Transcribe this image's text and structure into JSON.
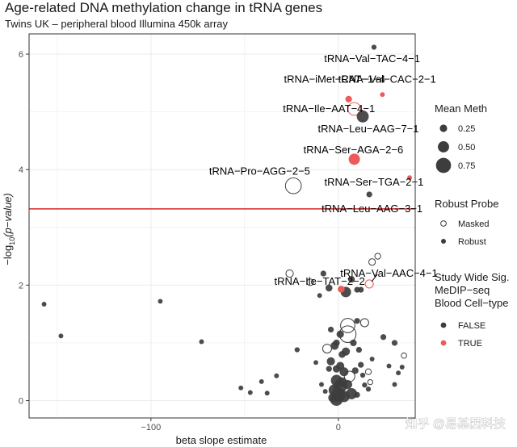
{
  "chart_data": {
    "type": "scatter",
    "title": "Age-related DNA methylation change in tRNA genes",
    "subtitle": "Twins UK – peripheral blood Illumina 450k array",
    "xlabel": "beta slope estimate",
    "ylabel_prefix": "−log",
    "ylabel_sub": "10",
    "ylabel_suffix": "(p−value)",
    "xlim": [
      -165,
      41
    ],
    "ylim": [
      -0.3,
      6.35
    ],
    "xticks": [
      {
        "value": -100,
        "label": "−100"
      },
      {
        "value": 0,
        "label": "0"
      }
    ],
    "yticks": [
      {
        "value": 0,
        "label": "0"
      },
      {
        "value": 2,
        "label": "2"
      },
      {
        "value": 4,
        "label": "4"
      },
      {
        "value": 6,
        "label": "6"
      }
    ],
    "threshold_line": {
      "y": 3.32,
      "color": "#d62728"
    },
    "colors": {
      "false": "#3d3d3d",
      "true": "#ee5a5a",
      "panel_bg": "#ffffff",
      "grid": "#ebebeb",
      "frame": "#333333"
    },
    "legend_mean_meth": {
      "title": "Mean Meth",
      "entries": [
        {
          "label": "0.25",
          "meth": 0.25
        },
        {
          "label": "0.50",
          "meth": 0.5
        },
        {
          "label": "0.75",
          "meth": 0.75
        }
      ]
    },
    "legend_robust": {
      "title": "Robust Probe",
      "entries": [
        {
          "label": "Masked",
          "kind": "masked"
        },
        {
          "label": "Robust",
          "kind": "robust"
        }
      ]
    },
    "legend_sig": {
      "title_lines": [
        "Study Wide Sig.",
        "MeDIP−seq",
        "Blood Cell−type"
      ],
      "entries": [
        {
          "label": "FALSE",
          "sig": false
        },
        {
          "label": "TRUE",
          "sig": true
        }
      ]
    },
    "labeled_points": [
      {
        "label": "tRNA−Val−TAC−4−1",
        "x": 19,
        "y": 6.12,
        "meth": 0.1,
        "robust": true,
        "sig": false,
        "lx": 18,
        "ly": 5.92
      },
      {
        "label": "tRNA−iMet−CAT−1−4",
        "x": 5.5,
        "y": 5.22,
        "meth": 0.2,
        "robust": true,
        "sig": true,
        "lx": -2,
        "ly": 5.56
      },
      {
        "label": "tRNA−Val−CAC−2−1",
        "x": 23.5,
        "y": 5.3,
        "meth": 0.08,
        "robust": true,
        "sig": true,
        "lx": 26,
        "ly": 5.56
      },
      {
        "label": "tRNA−Ile−AAT−4−1",
        "x": 8.5,
        "y": 5.05,
        "meth": 0.6,
        "robust": false,
        "sig": true,
        "lx": -5,
        "ly": 5.05
      },
      {
        "label": "tRNA−Leu−AAG−7−1",
        "x": 13,
        "y": 4.92,
        "meth": 0.55,
        "robust": true,
        "sig": false,
        "lx": 16,
        "ly": 4.7
      },
      {
        "label": "tRNA−Ser−AGA−2−6",
        "x": 8.5,
        "y": 4.18,
        "meth": 0.5,
        "robust": true,
        "sig": true,
        "lx": 8,
        "ly": 4.34
      },
      {
        "label": "tRNA−Pro−AGG−2−5",
        "x": -24,
        "y": 3.72,
        "meth": 0.8,
        "robust": false,
        "sig": false,
        "lx": -42,
        "ly": 3.97
      },
      {
        "label": "tRNA−Ser−TGA−2−1",
        "x": 38,
        "y": 3.86,
        "meth": 0.08,
        "robust": true,
        "sig": true,
        "lx": 19,
        "ly": 3.78
      },
      {
        "label": "tRNA−Leu−AAG−3−1",
        "x": 16.5,
        "y": 3.57,
        "meth": 0.15,
        "robust": true,
        "sig": false,
        "lx": 18,
        "ly": 3.32
      },
      {
        "label": "tRNA−Val−AAC−4−1",
        "x": 16.5,
        "y": 2.02,
        "meth": 0.3,
        "robust": false,
        "sig": true,
        "lx": 27,
        "ly": 2.2
      },
      {
        "label": "tRNA−Ile−TAT−2−2",
        "x": 1.5,
        "y": 1.93,
        "meth": 0.22,
        "robust": true,
        "sig": true,
        "lx": -10,
        "ly": 2.06
      }
    ],
    "points": [
      {
        "x": -157,
        "y": 1.67,
        "meth": 0.08,
        "robust": true
      },
      {
        "x": -148,
        "y": 1.12,
        "meth": 0.08,
        "robust": true
      },
      {
        "x": -95,
        "y": 1.72,
        "meth": 0.08,
        "robust": true
      },
      {
        "x": -73,
        "y": 1.02,
        "meth": 0.08,
        "robust": true
      },
      {
        "x": -52,
        "y": 0.22,
        "meth": 0.08,
        "robust": true
      },
      {
        "x": -47,
        "y": 0.14,
        "meth": 0.08,
        "robust": true
      },
      {
        "x": -41,
        "y": 0.33,
        "meth": 0.08,
        "robust": true
      },
      {
        "x": -38,
        "y": 0.13,
        "meth": 0.08,
        "robust": true
      },
      {
        "x": -33,
        "y": 0.43,
        "meth": 0.08,
        "robust": true
      },
      {
        "x": -22,
        "y": 0.88,
        "meth": 0.1,
        "robust": true
      },
      {
        "x": -12,
        "y": 0.66,
        "meth": 0.08,
        "robust": true
      },
      {
        "x": -9,
        "y": 0.28,
        "meth": 0.08,
        "robust": true
      },
      {
        "x": -7,
        "y": 0.16,
        "meth": 0.08,
        "robust": true
      },
      {
        "x": -26,
        "y": 2.2,
        "meth": 0.25,
        "robust": false
      },
      {
        "x": -15,
        "y": 2.05,
        "meth": 0.2,
        "robust": false
      },
      {
        "x": -10,
        "y": 1.82,
        "meth": 0.08,
        "robust": true
      },
      {
        "x": -8,
        "y": 2.2,
        "meth": 0.15,
        "robust": true
      },
      {
        "x": -5,
        "y": 1.95,
        "meth": 0.22,
        "robust": true
      },
      {
        "x": 4,
        "y": 1.88,
        "meth": 0.45,
        "robust": true
      },
      {
        "x": 10,
        "y": 1.92,
        "meth": 0.15,
        "robust": true
      },
      {
        "x": 12,
        "y": 1.92,
        "meth": 0.15,
        "robust": true
      },
      {
        "x": 7,
        "y": 2.1,
        "meth": 0.2,
        "robust": true
      },
      {
        "x": 18,
        "y": 2.4,
        "meth": 0.2,
        "robust": false
      },
      {
        "x": 21,
        "y": 2.5,
        "meth": 0.15,
        "robust": false
      },
      {
        "x": 14,
        "y": 1.35,
        "meth": 0.3,
        "robust": false
      },
      {
        "x": 10,
        "y": 1.38,
        "meth": 0.15,
        "robust": true
      },
      {
        "x": 5,
        "y": 1.3,
        "meth": 0.7,
        "robust": false
      },
      {
        "x": 5,
        "y": 1.15,
        "meth": 0.85,
        "robust": false
      },
      {
        "x": 1,
        "y": 1.15,
        "meth": 0.25,
        "robust": true
      },
      {
        "x": -4,
        "y": 1.23,
        "meth": 0.15,
        "robust": true
      },
      {
        "x": -1,
        "y": 1.0,
        "meth": 0.2,
        "robust": true
      },
      {
        "x": -6,
        "y": 0.9,
        "meth": 0.35,
        "robust": false
      },
      {
        "x": -2,
        "y": 0.95,
        "meth": 0.3,
        "robust": true
      },
      {
        "x": -4,
        "y": 0.68,
        "meth": 0.3,
        "robust": true
      },
      {
        "x": 4,
        "y": 0.85,
        "meth": 0.3,
        "robust": true
      },
      {
        "x": 8,
        "y": 1.0,
        "meth": 0.2,
        "robust": true
      },
      {
        "x": 11,
        "y": 0.88,
        "meth": 0.15,
        "robust": true
      },
      {
        "x": 12,
        "y": 0.62,
        "meth": 0.15,
        "robust": true
      },
      {
        "x": 3,
        "y": 0.5,
        "meth": 0.35,
        "robust": true
      },
      {
        "x": 6,
        "y": 0.42,
        "meth": 0.45,
        "robust": false
      },
      {
        "x": -1,
        "y": 0.35,
        "meth": 0.5,
        "robust": true
      },
      {
        "x": 1,
        "y": 0.25,
        "meth": 0.65,
        "robust": true
      },
      {
        "x": -2,
        "y": 0.18,
        "meth": 0.55,
        "robust": true
      },
      {
        "x": 0,
        "y": 0.1,
        "meth": 0.7,
        "robust": true
      },
      {
        "x": 3,
        "y": 0.07,
        "meth": 0.5,
        "robust": true
      },
      {
        "x": -3,
        "y": 0.05,
        "meth": 0.35,
        "robust": true
      },
      {
        "x": 5,
        "y": 0.28,
        "meth": 0.35,
        "robust": true
      },
      {
        "x": 7,
        "y": 0.12,
        "meth": 0.5,
        "robust": true
      },
      {
        "x": 2,
        "y": 0.32,
        "meth": 0.4,
        "robust": true
      },
      {
        "x": -1,
        "y": 0.55,
        "meth": 0.25,
        "robust": true
      },
      {
        "x": 9,
        "y": 0.52,
        "meth": 0.2,
        "robust": true
      },
      {
        "x": 10,
        "y": 0.1,
        "meth": 0.15,
        "robust": true
      },
      {
        "x": 16,
        "y": 0.5,
        "meth": 0.15,
        "robust": false
      },
      {
        "x": 17,
        "y": 0.32,
        "meth": 0.1,
        "robust": false
      },
      {
        "x": 16,
        "y": 0.2,
        "meth": 0.1,
        "robust": true
      },
      {
        "x": 14,
        "y": 0.27,
        "meth": 0.1,
        "robust": true
      },
      {
        "x": 13,
        "y": 0.44,
        "meth": 0.1,
        "robust": true
      },
      {
        "x": 24,
        "y": 1.1,
        "meth": 0.15,
        "robust": true
      },
      {
        "x": 30,
        "y": 1.0,
        "meth": 0.15,
        "robust": true
      },
      {
        "x": 35,
        "y": 0.78,
        "meth": 0.12,
        "robust": false
      },
      {
        "x": 27,
        "y": 0.6,
        "meth": 0.08,
        "robust": true
      },
      {
        "x": 32,
        "y": 0.48,
        "meth": 0.08,
        "robust": true
      },
      {
        "x": 34,
        "y": 0.58,
        "meth": 0.08,
        "robust": true
      },
      {
        "x": 30,
        "y": 0.28,
        "meth": 0.08,
        "robust": true
      },
      {
        "x": 18,
        "y": 0.72,
        "meth": 0.08,
        "robust": true
      },
      {
        "x": -1,
        "y": 0.02,
        "meth": 0.6,
        "robust": true
      },
      {
        "x": 1,
        "y": 0.6,
        "meth": 0.3,
        "robust": true
      },
      {
        "x": -5,
        "y": 0.55,
        "meth": 0.15,
        "robust": true
      },
      {
        "x": 2,
        "y": 0.8,
        "meth": 0.22,
        "robust": true
      }
    ]
  },
  "watermark": "知乎 @易基因科技"
}
